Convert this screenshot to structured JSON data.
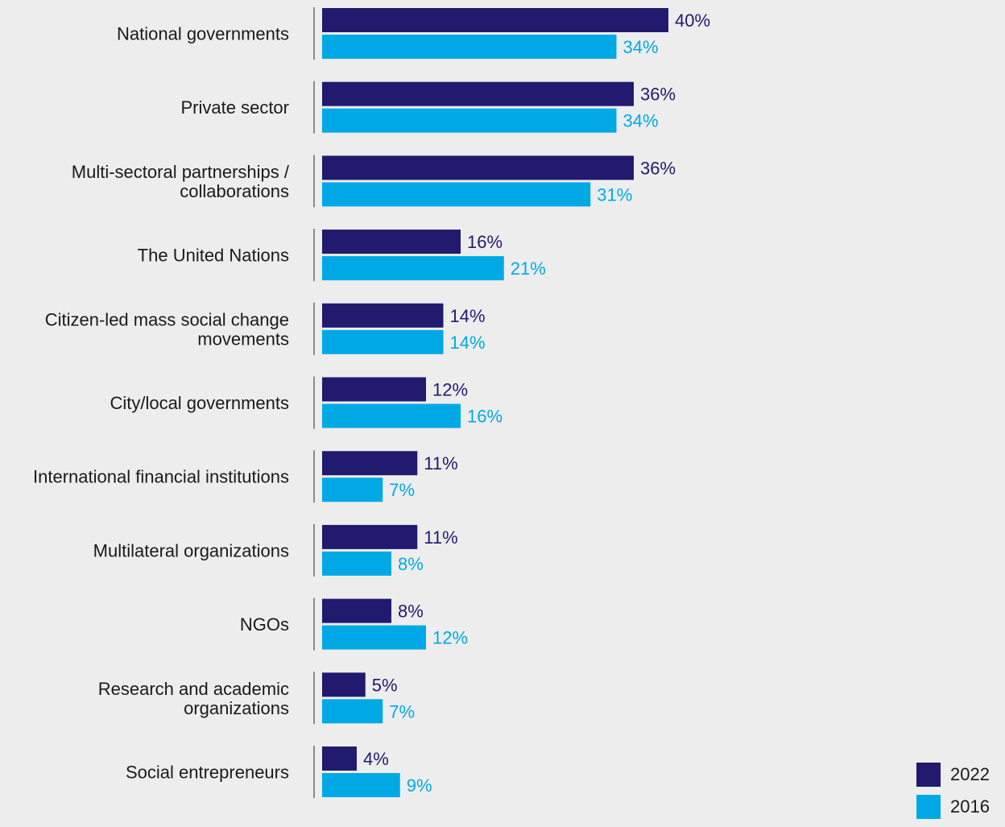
{
  "chart_data": {
    "type": "bar",
    "orientation": "horizontal",
    "categories": [
      [
        "National governments"
      ],
      [
        "Private sector"
      ],
      [
        "Multi-sectoral partnerships /",
        "collaborations"
      ],
      [
        "The United Nations"
      ],
      [
        "Citizen-led mass social change",
        "movements"
      ],
      [
        "City/local governments"
      ],
      [
        "International financial institutions"
      ],
      [
        "Multilateral organizations"
      ],
      [
        "NGOs"
      ],
      [
        "Research and academic",
        "organizations"
      ],
      [
        "Social entrepreneurs"
      ]
    ],
    "series": [
      {
        "name": "2022",
        "color": "#221a6e",
        "values": [
          40,
          36,
          36,
          16,
          14,
          12,
          11,
          11,
          8,
          5,
          4
        ],
        "labels": [
          "40%",
          "36%",
          "36%",
          "16%",
          "14%",
          "12%",
          "11%",
          "11%",
          "8%",
          "5%",
          "4%"
        ]
      },
      {
        "name": "2016",
        "color": "#00a9e6",
        "values": [
          34,
          34,
          31,
          21,
          14,
          16,
          7,
          8,
          12,
          7,
          9
        ],
        "labels": [
          "34%",
          "34%",
          "31%",
          "21%",
          "14%",
          "16%",
          "7%",
          "8%",
          "12%",
          "7%",
          "9%"
        ]
      }
    ],
    "xlim": [
      0,
      40
    ],
    "grid": false,
    "legend_position": "bottom-right",
    "colors": {
      "background": "#ededee",
      "axis_line": "#8a8a8a",
      "text": "#1a1a1a"
    }
  }
}
